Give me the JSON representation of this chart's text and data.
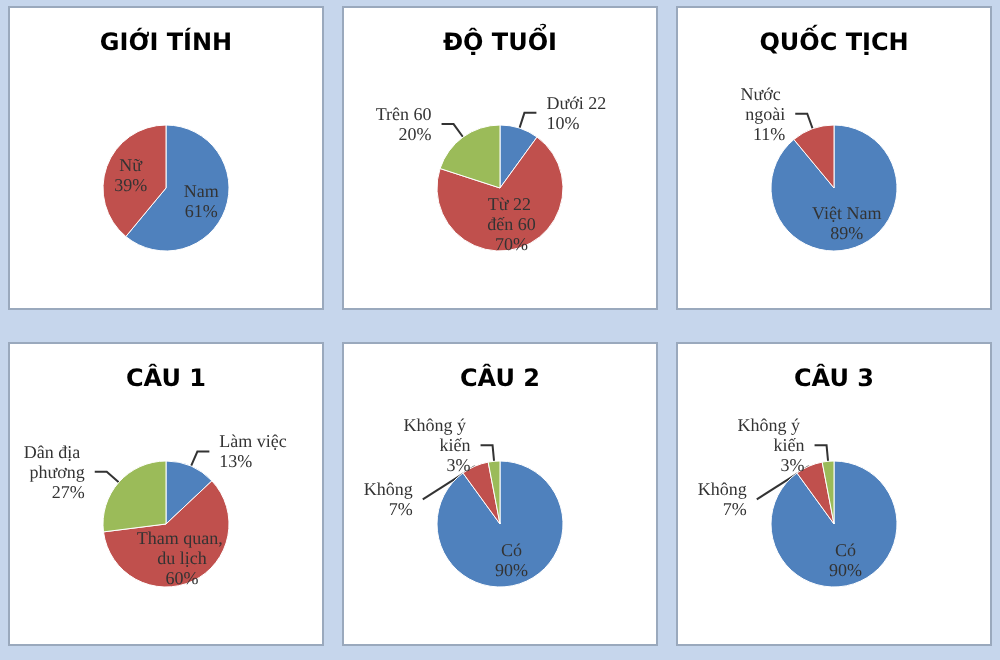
{
  "chart_data": [
    {
      "type": "pie",
      "title": "GIỚI TÍNH",
      "categories": [
        "Nam",
        "Nữ"
      ],
      "values": [
        61,
        39
      ],
      "value_labels": [
        "61%",
        "39%"
      ],
      "colors": [
        "#4f81bd",
        "#c0504d"
      ],
      "legend": false
    },
    {
      "type": "pie",
      "title": "ĐỘ TUỔI",
      "categories": [
        "Dưới 22",
        "Từ 22 đến 60",
        "Trên 60"
      ],
      "values": [
        10,
        70,
        20
      ],
      "value_labels": [
        "10%",
        "70%",
        "20%"
      ],
      "colors": [
        "#4f81bd",
        "#c0504d",
        "#9bbb59"
      ],
      "legend": false
    },
    {
      "type": "pie",
      "title": "QUỐC TỊCH",
      "categories": [
        "Việt Nam",
        "Nước ngoài"
      ],
      "values": [
        89,
        11
      ],
      "value_labels": [
        "89%",
        "11%"
      ],
      "colors": [
        "#4f81bd",
        "#c0504d"
      ],
      "legend": false
    },
    {
      "type": "pie",
      "title": "CÂU 1",
      "categories": [
        "Làm việc",
        "Tham quan, du lịch",
        "Dân địa phương"
      ],
      "values": [
        13,
        60,
        27
      ],
      "value_labels": [
        "13%",
        "60%",
        "27%"
      ],
      "colors": [
        "#4f81bd",
        "#c0504d",
        "#9bbb59"
      ],
      "legend": false
    },
    {
      "type": "pie",
      "title": "CÂU 2",
      "categories": [
        "Có",
        "Không",
        "Không ý kiến"
      ],
      "values": [
        90,
        7,
        3
      ],
      "value_labels": [
        "90%",
        "7%",
        "3%"
      ],
      "colors": [
        "#4f81bd",
        "#c0504d",
        "#9bbb59"
      ],
      "legend": false
    },
    {
      "type": "pie",
      "title": "CÂU 3",
      "categories": [
        "Có",
        "Không",
        "Không ý kiến"
      ],
      "values": [
        90,
        7,
        3
      ],
      "value_labels": [
        "90%",
        "7%",
        "3%"
      ],
      "colors": [
        "#4f81bd",
        "#c0504d",
        "#9bbb59"
      ],
      "legend": false
    }
  ]
}
